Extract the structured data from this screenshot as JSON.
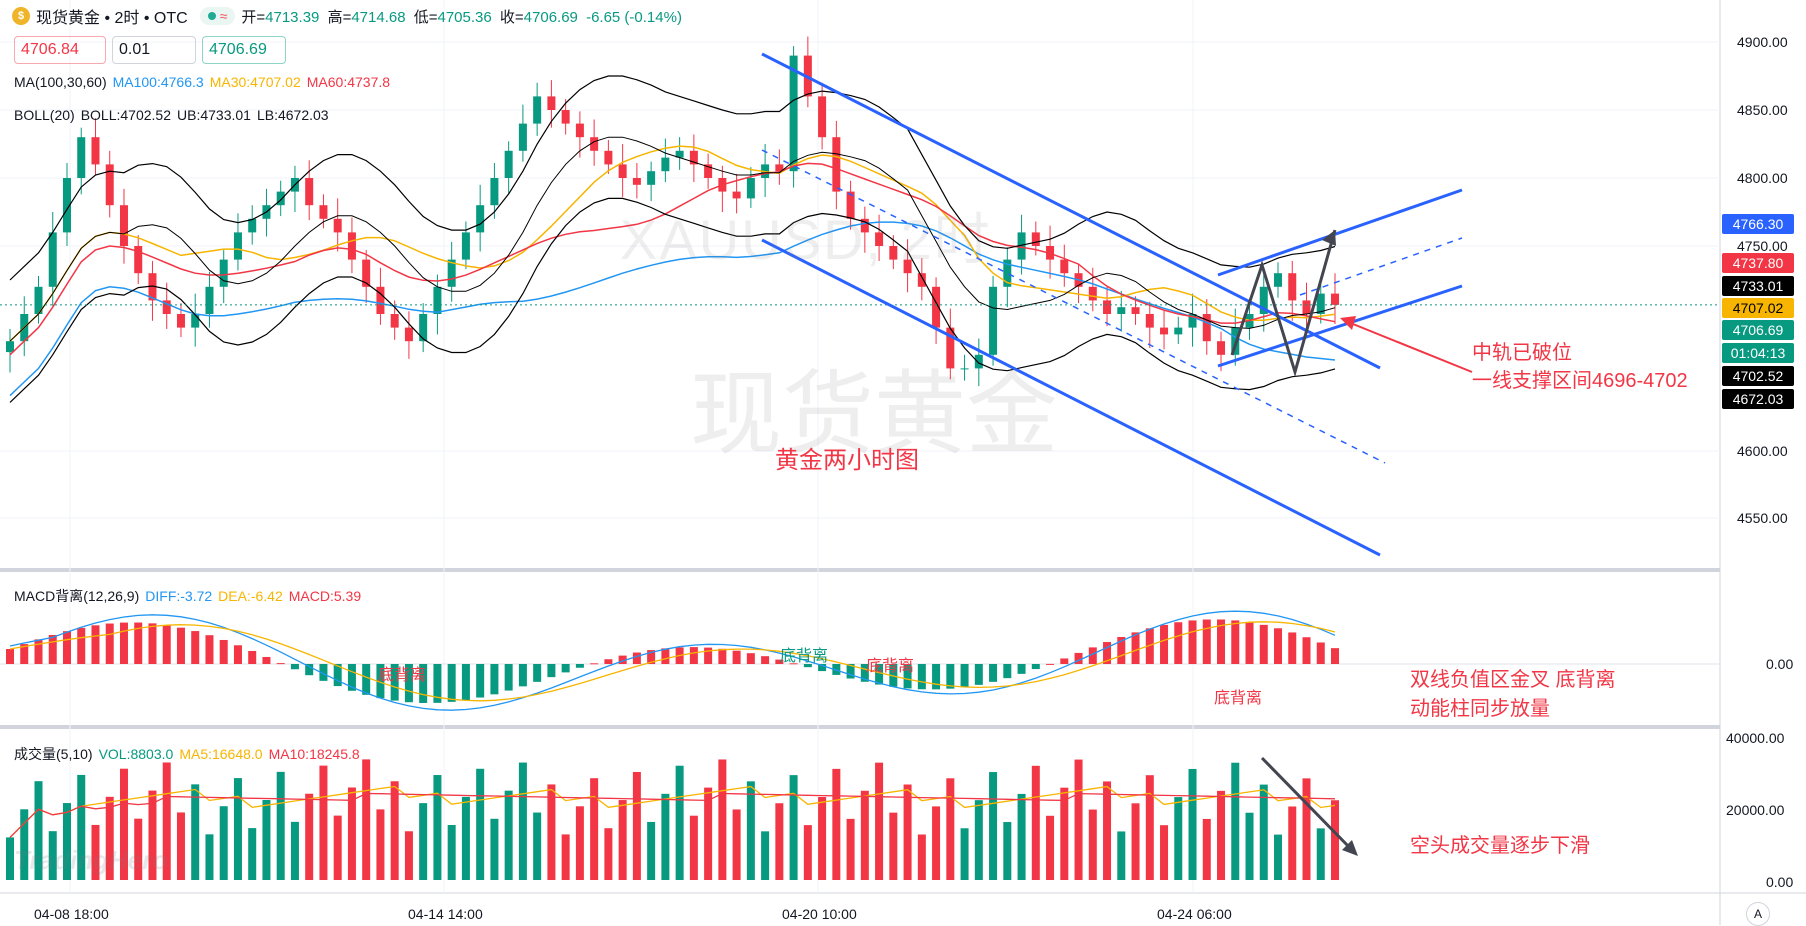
{
  "header": {
    "symbol": "现货黄金",
    "interval": "2时",
    "exchange": "OTC",
    "wave_icon": "≈",
    "ohlc": [
      {
        "k": "开=",
        "v": "4713.39"
      },
      {
        "k": "高=",
        "v": "4714.68"
      },
      {
        "k": "低=",
        "v": "4705.36"
      },
      {
        "k": "收=",
        "v": "4706.69"
      }
    ],
    "change": "-6.65 (-0.14%)"
  },
  "order": {
    "sell": "4706.84",
    "qty": "0.01",
    "buy": "4706.69"
  },
  "indicators": {
    "ma": {
      "label": "MA(100,30,60)",
      "ma100": "MA100:4766.3",
      "ma30": "MA30:4707.02",
      "ma60": "MA60:4737.8"
    },
    "boll": {
      "label": "BOLL(20)",
      "boll": "BOLL:4702.52",
      "ub": "UB:4733.01",
      "lb": "LB:4672.03"
    },
    "macd": {
      "label": "MACD背离(12,26,9)",
      "diff": "DIFF:-3.72",
      "dea": "DEA:-6.42",
      "macd": "MACD:5.39"
    },
    "vol": {
      "label": "成交量(5,10)",
      "vol": "VOL:8803.0",
      "ma5": "MA5:16648.0",
      "ma10": "MA10:18245.8"
    }
  },
  "price_axis": [
    "4900.00",
    "4850.00",
    "4800.00",
    "4750.00",
    "4600.00",
    "4550.00"
  ],
  "price_tags": [
    {
      "text": "4766.30",
      "bg": "#2962ff",
      "fg": "#ffffff",
      "y": 4766.3
    },
    {
      "text": "4737.80",
      "bg": "#f23645",
      "fg": "#ffffff",
      "y": 4737.8
    },
    {
      "text": "4733.01",
      "bg": "#000000",
      "fg": "#ffffff",
      "y": 4733.01
    },
    {
      "text": "4707.02",
      "bg": "#f7b500",
      "fg": "#000000",
      "y": 4707.02
    },
    {
      "text": "4706.69",
      "bg": "#089981",
      "fg": "#ffffff",
      "y": 4706.69
    },
    {
      "text": "01:04:13",
      "bg": "#089981",
      "fg": "#ffffff",
      "y": 4691
    },
    {
      "text": "4702.52",
      "bg": "#000000",
      "fg": "#ffffff",
      "y": 4676
    },
    {
      "text": "4672.03",
      "bg": "#000000",
      "fg": "#ffffff",
      "y": 4672.03
    }
  ],
  "macd_axis": [
    "0.00"
  ],
  "vol_axis": [
    "40000.00",
    "20000.00",
    "0.00"
  ],
  "x_axis": [
    "04-08 18:00",
    "04-14 14:00",
    "04-20 10:00",
    "04-24 06:00"
  ],
  "watermark": {
    "symbol": "XAUUSD, 2时",
    "name": "现货黄金",
    "brand": "TradingHero"
  },
  "annotations": {
    "title": "黄金两小时图",
    "mid_break_1": "中轨已破位",
    "mid_break_2": "一线支撑区间4696-4702",
    "macd_note_1": "双线负值区金叉  底背离",
    "macd_note_2": "动能柱同步放量",
    "vol_note": "空头成交量逐步下滑",
    "div_labels": [
      "底背离",
      "底背离",
      "底背离",
      "底背离"
    ]
  },
  "colors": {
    "up": "#089981",
    "down": "#f23645",
    "ma100": "#2196f3",
    "ma30": "#f7b500",
    "ma60": "#f23645",
    "boll": "#000000",
    "channel": "#2962ff",
    "dif": "#2196f3",
    "dea": "#f7b500"
  },
  "chart_data": {
    "type": "candlestick",
    "title": "黄金两小时图",
    "ylim": [
      4525,
      4925
    ],
    "x_ticks": [
      "04-08 18:00",
      "04-14 14:00",
      "04-20 10:00",
      "04-24 06:00"
    ],
    "close": [
      4680,
      4700,
      4720,
      4760,
      4800,
      4830,
      4810,
      4780,
      4750,
      4730,
      4710,
      4700,
      4690,
      4700,
      4720,
      4740,
      4760,
      4770,
      4780,
      4790,
      4800,
      4780,
      4770,
      4760,
      4740,
      4720,
      4700,
      4690,
      4680,
      4700,
      4720,
      4740,
      4760,
      4780,
      4800,
      4820,
      4840,
      4860,
      4850,
      4840,
      4830,
      4820,
      4810,
      4800,
      4795,
      4805,
      4815,
      4820,
      4810,
      4800,
      4790,
      4785,
      4800,
      4810,
      4805,
      4890,
      4860,
      4830,
      4790,
      4770,
      4760,
      4750,
      4740,
      4730,
      4720,
      4690,
      4660,
      4660,
      4670,
      4720,
      4740,
      4760,
      4750,
      4740,
      4730,
      4720,
      4710,
      4700,
      4705,
      4700,
      4690,
      4685,
      4690,
      4700,
      4680,
      4670,
      4690,
      4700,
      4720,
      4730,
      4710,
      4700,
      4715,
      4706.69
    ],
    "boll": {
      "ub": 4733.01,
      "mid": 4702.52,
      "lb": 4672.03
    },
    "ma": {
      "ma100": 4766.3,
      "ma30": 4707.02,
      "ma60": 4737.8
    },
    "macd": {
      "diff": -3.72,
      "dea": -6.42,
      "hist": 5.39
    },
    "volume": {
      "vol": 8803.0,
      "ma5": 16648.0,
      "ma10": 18245.8,
      "ylim": [
        0,
        40000
      ]
    }
  }
}
